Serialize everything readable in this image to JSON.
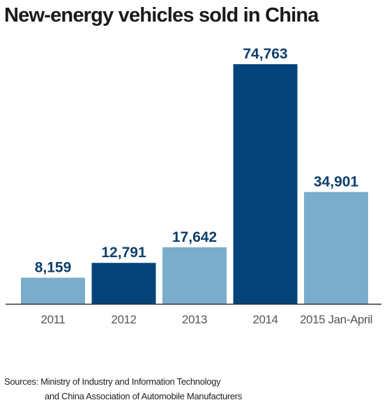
{
  "sources": {
    "line1": "Sources: Ministry of Industry and Information Technology",
    "line2": "and China Association of Automobile Manufacturers"
  },
  "chart_data": {
    "type": "bar",
    "title": "New-energy vehicles sold in China",
    "xlabel": "",
    "ylabel": "",
    "categories": [
      "2011",
      "2012",
      "2013",
      "2014",
      "2015 Jan-April"
    ],
    "values": [
      8159,
      12791,
      17642,
      74763,
      34901
    ],
    "value_labels": [
      "8,159",
      "12,791",
      "17,642",
      "74,763",
      "34,901"
    ],
    "ylim": [
      0,
      75000
    ],
    "grid": false,
    "legend": "none",
    "colors": {
      "light": "#7aaccb",
      "dark": "#05447a",
      "label": "#0d3f6c",
      "axis": "#333333",
      "tick_text": "#555555"
    },
    "bar_color_keys": [
      "light",
      "dark",
      "light",
      "dark",
      "light"
    ]
  }
}
